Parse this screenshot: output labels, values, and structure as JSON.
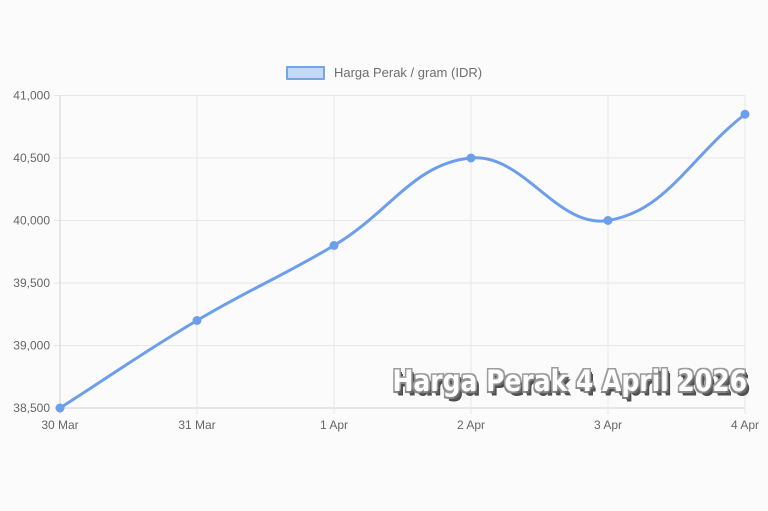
{
  "legend": {
    "label": "Harga Perak / gram (IDR)",
    "swatch_fill": "#c3d9f5",
    "swatch_border": "#74a4ea"
  },
  "watermark": {
    "text": "Harga Perak 4 April 2026"
  },
  "colors": {
    "line": "#6d9eeb",
    "point": "#6d9eeb",
    "grid": "#e7e7e7",
    "axis": "#d2d2d2",
    "tick_label": "#666666",
    "background": "#fbfbfb",
    "watermark_fill": "#ffffff",
    "watermark_shadow": "#4f4f4f"
  },
  "chart_data": {
    "type": "line",
    "title": "",
    "xlabel": "",
    "ylabel": "",
    "categories": [
      "30 Mar",
      "31 Mar",
      "1 Apr",
      "2 Apr",
      "3 Apr",
      "4 Apr"
    ],
    "series": [
      {
        "name": "Harga Perak / gram (IDR)",
        "values": [
          38500,
          39200,
          39800,
          40500,
          40000,
          40850
        ]
      }
    ],
    "ylim": [
      38500,
      41000
    ],
    "yticks": [
      38500,
      39000,
      39500,
      40000,
      40500,
      41000
    ],
    "ytick_labels": [
      "38,500",
      "39,000",
      "39,500",
      "40,000",
      "40,500",
      "41,000"
    ],
    "grid": true,
    "legend_position": "top",
    "smooth": true,
    "line_tension": 0.4,
    "line_color": "#6d9eeb",
    "point_color": "#6d9eeb",
    "grid_color": "#e7e7e7",
    "axis_color": "#d2d2d2",
    "tick_label_color": "#666666"
  }
}
